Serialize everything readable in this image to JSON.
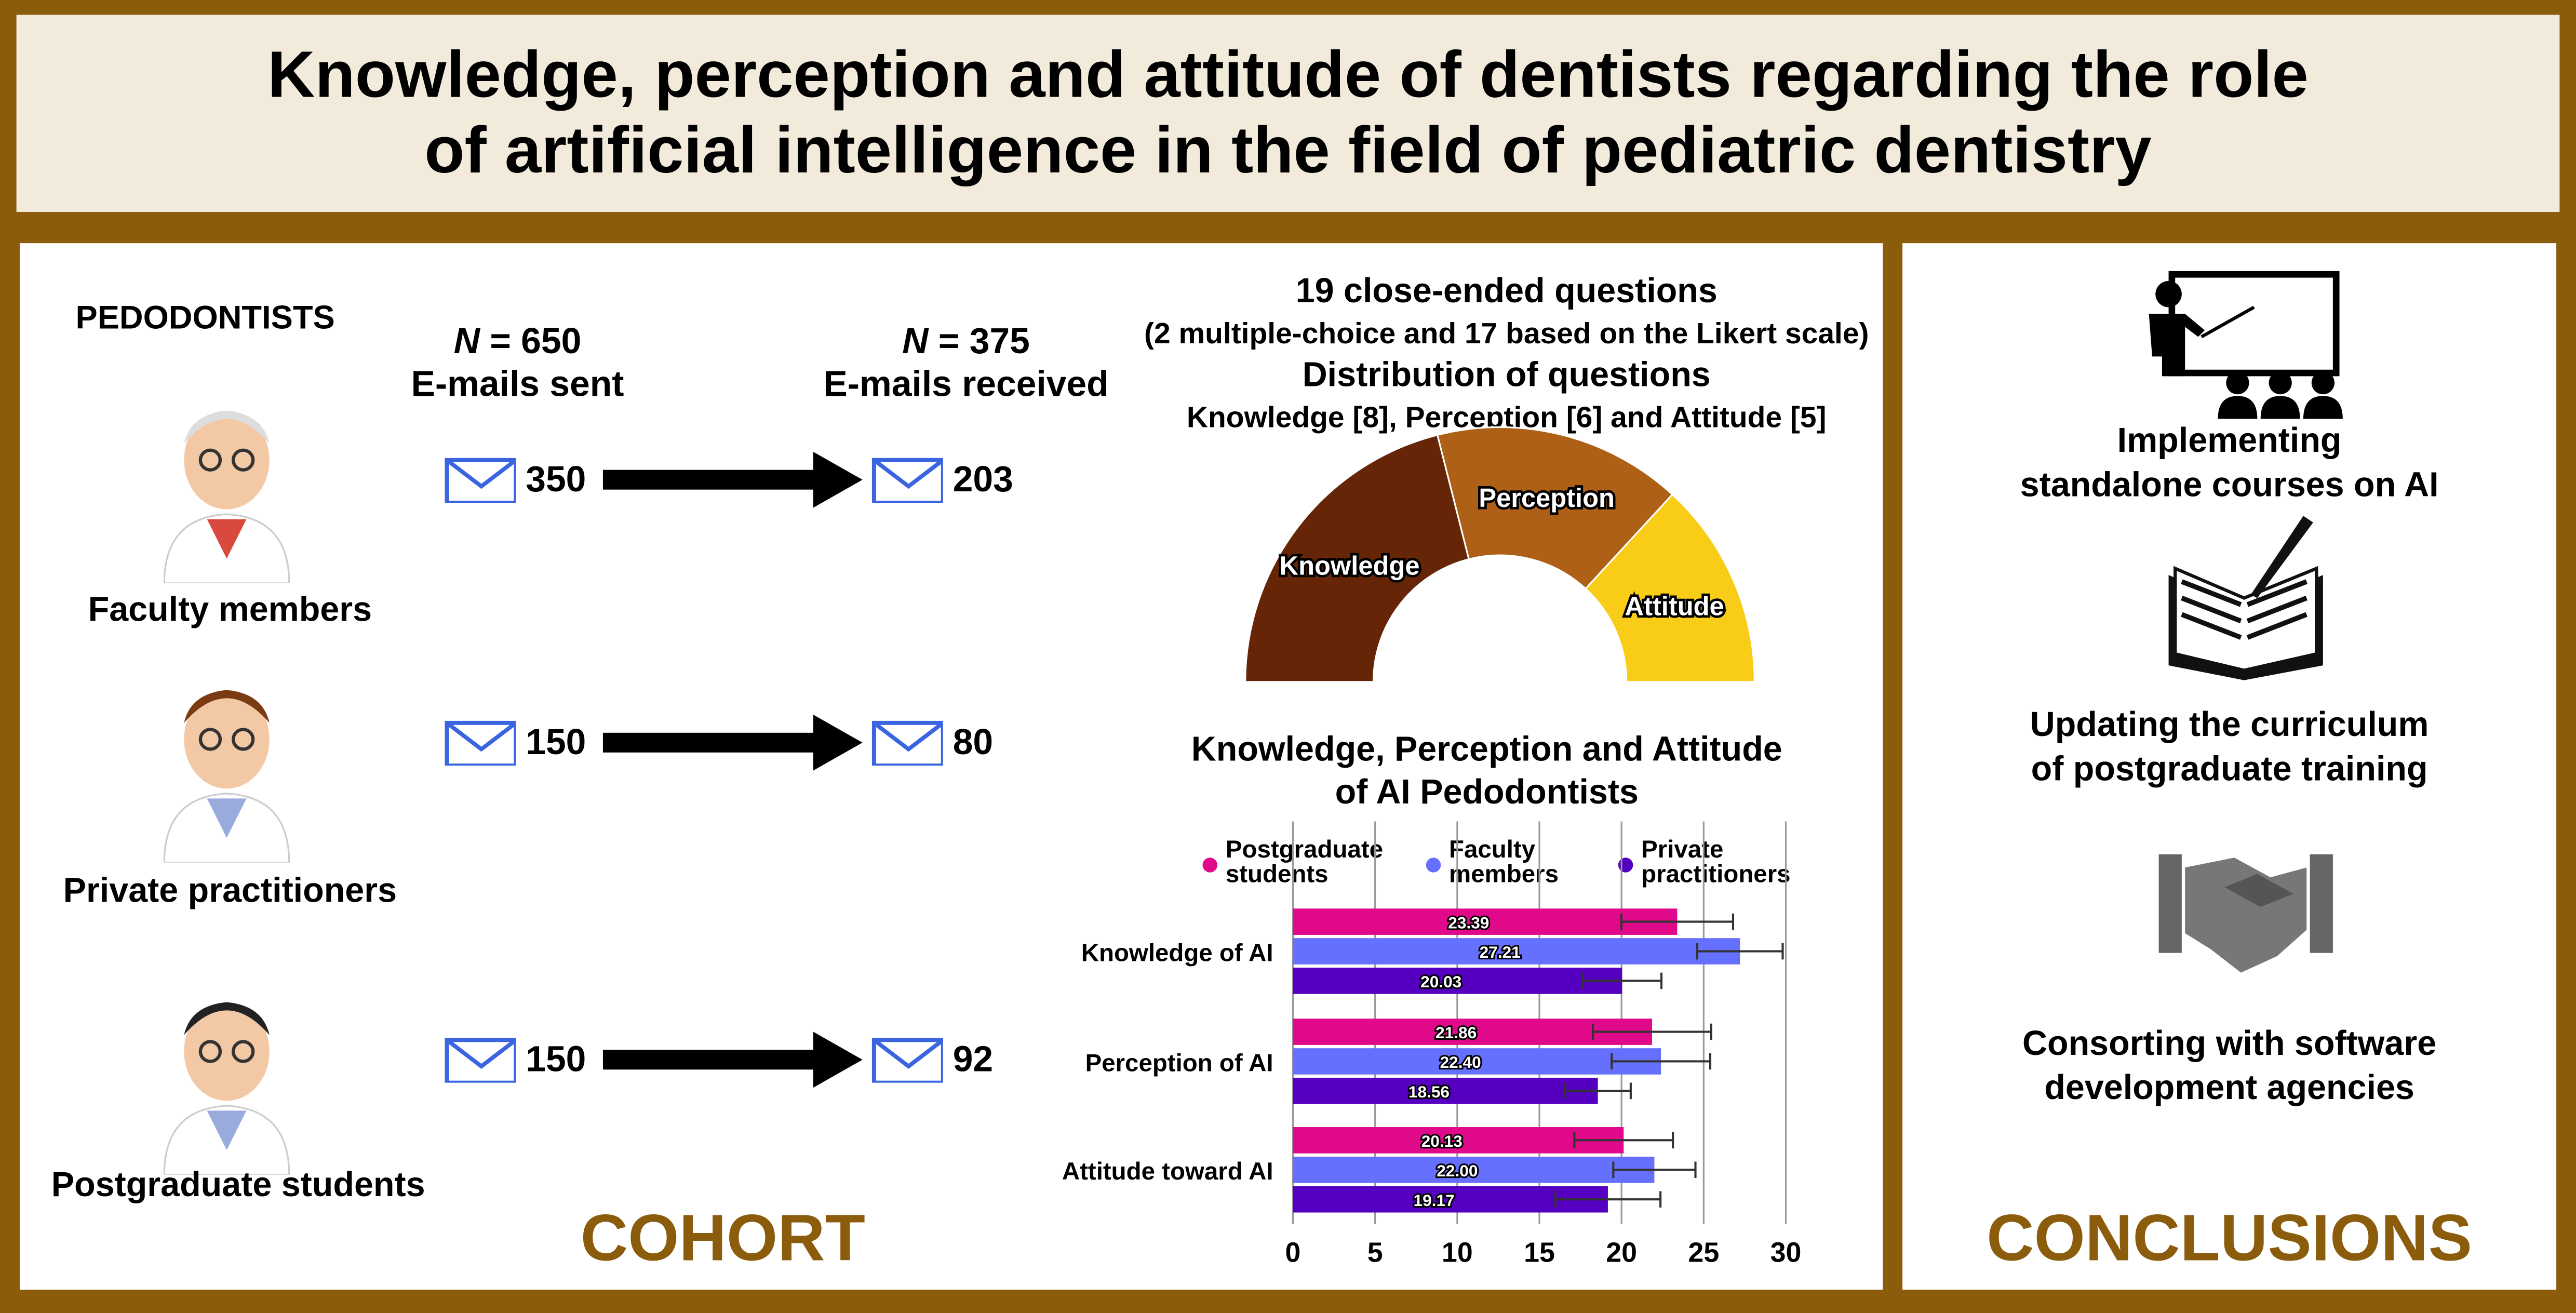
{
  "title": {
    "line1": "Knowledge, perception and attitude of dentists regarding the role",
    "line2": "of artificial intelligence in the field of pediatric dentistry"
  },
  "cohort": {
    "heading": "PEDODONTISTS",
    "sent": {
      "n": "N",
      "value": " = 650",
      "label": "E-mails sent"
    },
    "received": {
      "n": "N",
      "value": " = 375",
      "label": "E-mails received"
    },
    "groups": [
      {
        "label": "Faculty members",
        "sent": "350",
        "received": "203",
        "icon": "faculty-member-avatar"
      },
      {
        "label": "Private practitioners",
        "sent": "150",
        "received": "80",
        "icon": "private-practitioner-avatar"
      },
      {
        "label": "Postgraduate students",
        "sent": "150",
        "received": "92",
        "icon": "postgraduate-student-avatar"
      }
    ],
    "footer": "COHORT",
    "envelope_color": "#3a64e0"
  },
  "questions": {
    "line1": "19 close-ended questions",
    "line2": "(2 multiple-choice and 17 based on the Likert scale)",
    "line3": "Distribution of questions",
    "line4": "Knowledge [8], Perception [6] and Attitude [5]"
  },
  "chart_data": [
    {
      "type": "pie",
      "subtype": "half-donut",
      "categories": [
        "Knowledge",
        "Perception",
        "Attitude"
      ],
      "values": [
        8,
        6,
        5
      ],
      "colors": [
        "#662506",
        "#ad6016",
        "#f9cc17"
      ]
    },
    {
      "type": "bar",
      "orientation": "horizontal",
      "title": "Knowledge, Perception and Attitude of AI Pedodontists",
      "title_line1": "Knowledge, Perception and Attitude",
      "title_line2": "of AI Pedodontists",
      "categories": [
        "Knowledge of AI",
        "Perception of AI",
        "Attitude toward AI"
      ],
      "series": [
        {
          "name": "Postgraduate students",
          "name_line1": "Postgraduate",
          "name_line2": "students",
          "color": "#e0098a",
          "values": [
            23.39,
            21.86,
            20.13
          ],
          "error": [
            3.4,
            3.6,
            3.0
          ],
          "labels": [
            "23.39",
            "21.86",
            "20.13"
          ]
        },
        {
          "name": "Faculty members",
          "name_line1": "Faculty",
          "name_line2": "members",
          "color": "#6670ff",
          "values": [
            27.21,
            22.4,
            22.0
          ],
          "error": [
            2.6,
            3.0,
            2.5
          ],
          "labels": [
            "27.21",
            "22.40",
            "22.00"
          ]
        },
        {
          "name": "Private practitioners",
          "name_line1": "Private",
          "name_line2": "practitioners",
          "color": "#5500c0",
          "values": [
            20.03,
            18.56,
            19.17
          ],
          "error": [
            2.4,
            2.0,
            3.2
          ],
          "labels": [
            "20.03",
            "18.56",
            "19.17"
          ]
        }
      ],
      "xlim": [
        0,
        30
      ],
      "xticks": [
        "0",
        "5",
        "10",
        "15",
        "20",
        "25",
        "30"
      ],
      "grid": true,
      "legend": "top"
    }
  ],
  "conclusions": {
    "items": [
      {
        "line1": "Implementing",
        "line2": "standalone courses on AI",
        "icon": "teacher-presentation-icon"
      },
      {
        "line1": "Updating the curriculum",
        "line2": "of postgraduate training",
        "icon": "open-book-pen-icon"
      },
      {
        "line1": "Consorting with software",
        "line2": "development agencies",
        "icon": "handshake-icon"
      }
    ],
    "footer": "CONCLUSIONS"
  }
}
